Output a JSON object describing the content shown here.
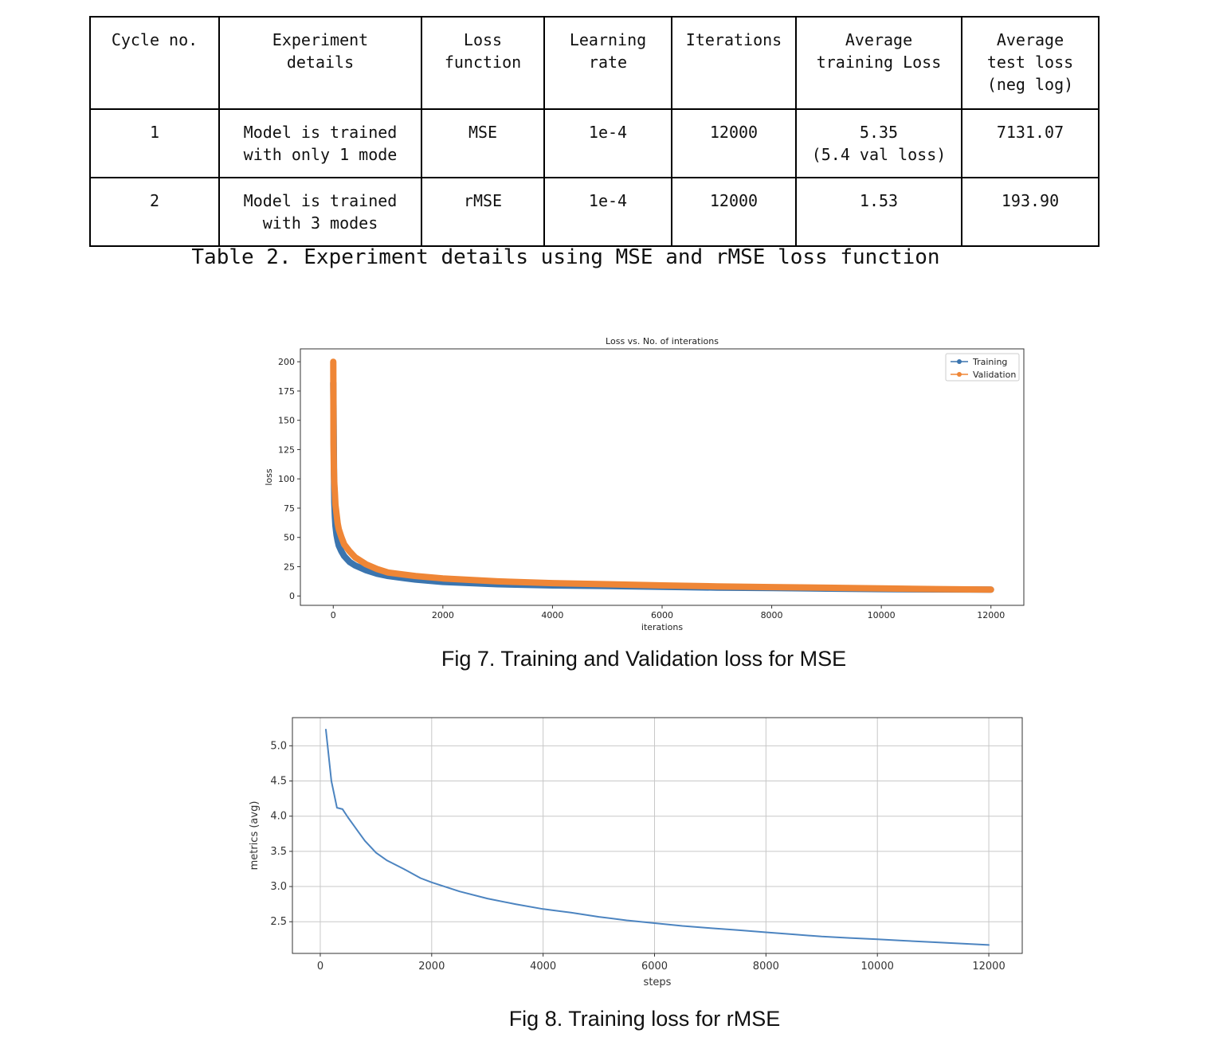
{
  "table": {
    "headers": [
      "Cycle no.",
      "Experiment\ndetails",
      "Loss\nfunction",
      "Learning\nrate",
      "Iterations",
      "Average\ntraining Loss",
      "Average\ntest loss\n(neg log)"
    ],
    "rows": [
      [
        "1",
        "Model is trained\nwith only 1 mode",
        "MSE",
        "1e-4",
        "12000",
        "5.35\n(5.4 val loss)",
        "7131.07"
      ],
      [
        "2",
        "Model is trained\nwith 3 modes",
        "rMSE",
        "1e-4",
        "12000",
        "1.53",
        "193.90"
      ]
    ],
    "caption": "Table 2. Experiment details using MSE and rMSE loss function"
  },
  "chart_data": [
    {
      "type": "line",
      "title": "Loss vs. No. of interations",
      "xlabel": "iterations",
      "ylabel": "loss",
      "xlim": [
        -600,
        12600
      ],
      "ylim": [
        -8,
        211
      ],
      "xticks": [
        0,
        2000,
        4000,
        6000,
        8000,
        10000,
        12000
      ],
      "yticks": [
        0,
        25,
        50,
        75,
        100,
        125,
        150,
        175,
        200
      ],
      "legend_position": "top-right",
      "markers": true,
      "series": [
        {
          "name": "Training",
          "color": "#3b75af",
          "x": [
            0,
            5,
            10,
            15,
            20,
            30,
            40,
            60,
            80,
            100,
            150,
            200,
            300,
            400,
            600,
            800,
            1000,
            1500,
            2000,
            3000,
            4000,
            5000,
            6000,
            7000,
            8000,
            9000,
            10000,
            11000,
            12000
          ],
          "y": [
            182,
            160,
            120,
            95,
            80,
            68,
            60,
            52,
            47,
            43,
            38,
            34,
            29,
            26,
            22,
            19,
            17,
            14,
            12,
            10,
            9,
            8.5,
            7.8,
            7.2,
            6.8,
            6.3,
            5.9,
            5.6,
            5.4
          ]
        },
        {
          "name": "Validation",
          "color": "#ef8636",
          "x": [
            0,
            5,
            10,
            15,
            20,
            30,
            40,
            60,
            80,
            100,
            150,
            200,
            300,
            400,
            600,
            800,
            1000,
            1500,
            2000,
            3000,
            4000,
            5000,
            6000,
            7000,
            8000,
            9000,
            10000,
            11000,
            12000
          ],
          "y": [
            200,
            130,
            110,
            102,
            96,
            88,
            78,
            70,
            62,
            57,
            50,
            44,
            38,
            33,
            27,
            23,
            20,
            17,
            15,
            12.5,
            11,
            10,
            9,
            8.2,
            7.6,
            7,
            6.4,
            5.9,
            5.4
          ]
        }
      ],
      "caption": "Fig 7. Training and Validation loss for MSE"
    },
    {
      "type": "line",
      "title": "",
      "xlabel": "steps",
      "ylabel": "metrics (avg)",
      "xlim": [
        -500,
        12600
      ],
      "ylim": [
        2.05,
        5.4
      ],
      "xticks": [
        0,
        2000,
        4000,
        6000,
        8000,
        10000,
        12000
      ],
      "yticks": [
        2.5,
        3.0,
        3.5,
        4.0,
        4.5,
        5.0
      ],
      "grid": true,
      "series": [
        {
          "name": "rMSE",
          "color": "#4c84c0",
          "x": [
            100,
            200,
            300,
            400,
            500,
            600,
            700,
            800,
            1000,
            1200,
            1500,
            1800,
            2000,
            2500,
            3000,
            3500,
            4000,
            4500,
            5000,
            5500,
            6000,
            6500,
            7000,
            7500,
            8000,
            8500,
            9000,
            9500,
            10000,
            10500,
            11000,
            11500,
            12000
          ],
          "y": [
            5.23,
            4.5,
            4.12,
            4.1,
            3.98,
            3.87,
            3.76,
            3.65,
            3.48,
            3.37,
            3.25,
            3.12,
            3.06,
            2.93,
            2.83,
            2.75,
            2.68,
            2.63,
            2.57,
            2.52,
            2.48,
            2.44,
            2.41,
            2.38,
            2.35,
            2.32,
            2.29,
            2.27,
            2.25,
            2.23,
            2.21,
            2.19,
            2.17
          ]
        }
      ],
      "caption": "Fig 8. Training loss for rMSE"
    }
  ]
}
